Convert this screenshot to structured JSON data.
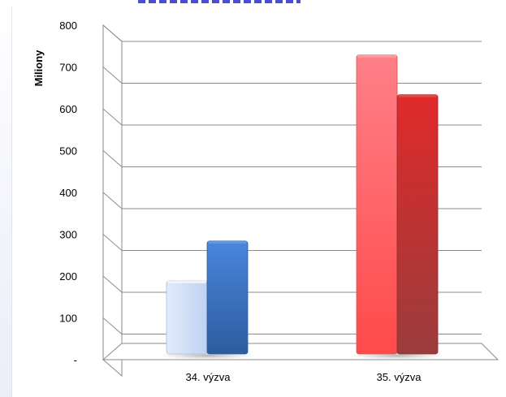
{
  "chart_data": {
    "type": "bar",
    "categories": [
      "34. výzva",
      "35. výzva"
    ],
    "series": [
      {
        "values": [
          175,
          270
        ]
      },
      {
        "values": [
          715,
          620
        ]
      }
    ],
    "ylabel": "Miliony",
    "ylim": [
      0,
      800
    ],
    "yticks": [
      0,
      100,
      200,
      300,
      400,
      500,
      600,
      700,
      800
    ],
    "ytick_labels": [
      "-",
      "100",
      "200",
      "300",
      "400",
      "500",
      "600",
      "700",
      "800"
    ],
    "grid": true,
    "style": "3d",
    "colors": {
      "34. výzva": [
        "#cddcf6",
        "#3a74c8"
      ],
      "35. výzva": [
        "#ff5a5e",
        "#c8302e"
      ]
    }
  }
}
